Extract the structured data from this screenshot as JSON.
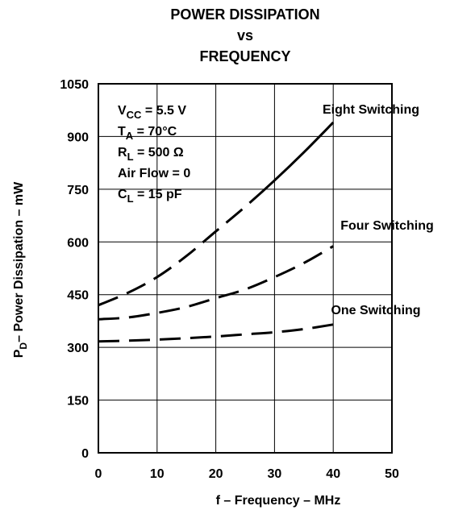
{
  "chart_data": {
    "type": "line",
    "title_lines": [
      "POWER DISSIPATION",
      "vs",
      "FREQUENCY"
    ],
    "xlabel": "f – Frequency – MHz",
    "ylabel": "– Power Dissipation – mW",
    "ylabel_prefix": "P",
    "ylabel_sub": "D",
    "xlim": [
      0,
      50
    ],
    "ylim": [
      0,
      1050
    ],
    "xticks": [
      0,
      10,
      20,
      30,
      40,
      50
    ],
    "yticks": [
      0,
      150,
      300,
      450,
      600,
      750,
      900,
      1050
    ],
    "grid": true,
    "conditions": [
      {
        "main": "V",
        "sub": "CC",
        "rest": " = 5.5 V"
      },
      {
        "main": "T",
        "sub": "A",
        "rest": " = 70°C"
      },
      {
        "main": "R",
        "sub": "L",
        "rest": " = 500 Ω"
      },
      {
        "main": "Air Flow = 0",
        "sub": "",
        "rest": ""
      },
      {
        "main": "C",
        "sub": "L",
        "rest": " = 15 pF"
      }
    ],
    "series": [
      {
        "name": "Eight Switching",
        "x": [
          0,
          5,
          10,
          15,
          20,
          25,
          30,
          35,
          40
        ],
        "values": [
          420,
          455,
          500,
          560,
          630,
          700,
          775,
          855,
          940
        ]
      },
      {
        "name": "Four Switching",
        "x": [
          0,
          5,
          10,
          15,
          20,
          25,
          30,
          35,
          40
        ],
        "values": [
          380,
          385,
          398,
          415,
          440,
          465,
          500,
          540,
          588
        ]
      },
      {
        "name": "One Switching",
        "x": [
          0,
          5,
          10,
          15,
          20,
          25,
          30,
          35,
          40
        ],
        "values": [
          317,
          319,
          322,
          326,
          331,
          337,
          343,
          352,
          365
        ]
      }
    ]
  }
}
